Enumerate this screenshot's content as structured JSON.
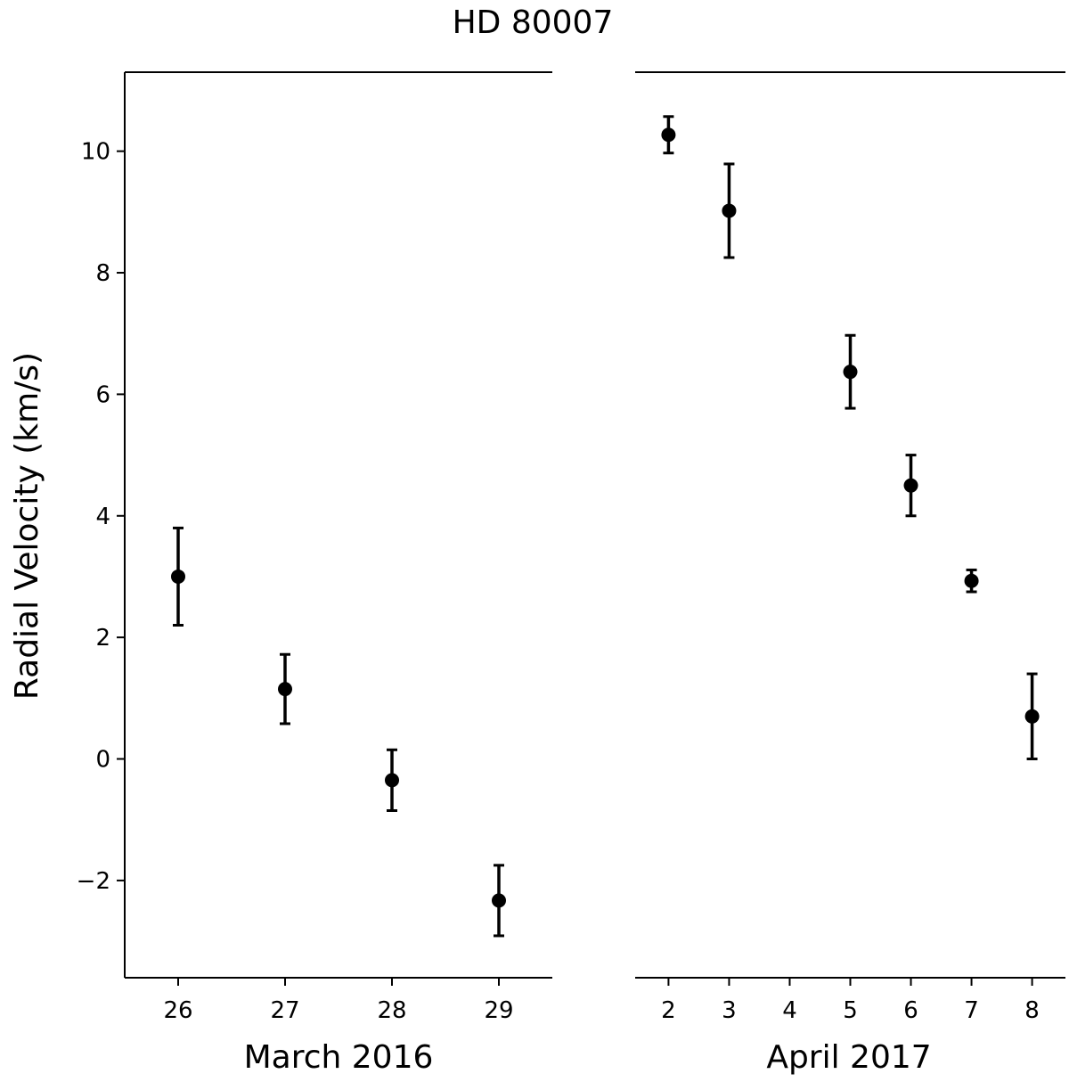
{
  "chart_data": {
    "type": "scatter",
    "title": "HD 80007",
    "ylabel": "Radial Velocity (km/s)",
    "ylim": [
      -3.6,
      11.3
    ],
    "yticks": [
      -2,
      0,
      2,
      4,
      6,
      8,
      10
    ],
    "ytick_labels": [
      "−2",
      "0",
      "2",
      "4",
      "6",
      "8",
      "10"
    ],
    "grid": false,
    "marker_color": "#000000",
    "panels": [
      {
        "xlabel": "March 2016",
        "xlim": [
          25.5,
          29.5
        ],
        "xticks": [
          26,
          27,
          28,
          29
        ],
        "xtick_labels": [
          "26",
          "27",
          "28",
          "29"
        ],
        "points": [
          {
            "x": 26,
            "y": 3.0,
            "err": 0.8
          },
          {
            "x": 27,
            "y": 1.15,
            "err": 0.57
          },
          {
            "x": 28,
            "y": -0.35,
            "err": 0.5
          },
          {
            "x": 29,
            "y": -2.33,
            "err": 0.58
          }
        ]
      },
      {
        "xlabel": "April 2017",
        "xlim": [
          1.45,
          8.55
        ],
        "xticks": [
          2,
          3,
          4,
          5,
          6,
          7,
          8
        ],
        "xtick_labels": [
          "2",
          "3",
          "4",
          "5",
          "6",
          "7",
          "8"
        ],
        "points": [
          {
            "x": 2,
            "y": 10.27,
            "err": 0.3
          },
          {
            "x": 3,
            "y": 9.02,
            "err": 0.77
          },
          {
            "x": 5,
            "y": 6.37,
            "err": 0.6
          },
          {
            "x": 6,
            "y": 4.5,
            "err": 0.5
          },
          {
            "x": 7,
            "y": 2.93,
            "err": 0.18
          },
          {
            "x": 8,
            "y": 0.7,
            "err": 0.7
          }
        ]
      }
    ]
  }
}
